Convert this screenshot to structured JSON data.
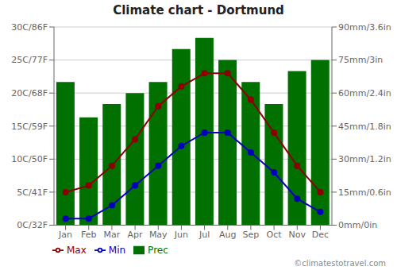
{
  "chart_data": {
    "type": "bar",
    "title": "Climate chart - Dortmund",
    "categories": [
      "Jan",
      "Feb",
      "Mar",
      "Apr",
      "May",
      "Jun",
      "Jul",
      "Aug",
      "Sep",
      "Oct",
      "Nov",
      "Dec"
    ],
    "series": [
      {
        "name": "Prec",
        "type": "bar",
        "axis": "y2",
        "color": "#007000",
        "values": [
          65,
          49,
          55,
          60,
          65,
          80,
          85,
          75,
          65,
          55,
          70,
          75
        ]
      },
      {
        "name": "Min",
        "type": "line",
        "color": "#0000bb",
        "marker": "circle",
        "values": [
          1,
          1,
          3,
          6,
          9,
          12,
          14,
          14,
          11,
          8,
          4,
          2
        ]
      },
      {
        "name": "Max",
        "type": "line",
        "color": "#8b0000",
        "marker": "circle",
        "values": [
          5,
          6,
          9,
          13,
          18,
          21,
          23,
          23,
          19,
          14,
          9,
          5
        ]
      }
    ],
    "ylim": [
      0,
      30
    ],
    "yticks": [
      {
        "value": 0,
        "label": "0C/32F"
      },
      {
        "value": 5,
        "label": "5C/41F"
      },
      {
        "value": 10,
        "label": "10C/50F"
      },
      {
        "value": 15,
        "label": "15C/59F"
      },
      {
        "value": 20,
        "label": "20C/68F"
      },
      {
        "value": 25,
        "label": "25C/77F"
      },
      {
        "value": 30,
        "label": "30C/86F"
      }
    ],
    "y2lim": [
      0,
      90
    ],
    "y2ticks": [
      {
        "value": 0,
        "label": "0mm/0in"
      },
      {
        "value": 15,
        "label": "15mm/0.6in"
      },
      {
        "value": 30,
        "label": "30mm/1.2in"
      },
      {
        "value": 45,
        "label": "45mm/1.8in"
      },
      {
        "value": 60,
        "label": "60mm/2.4in"
      },
      {
        "value": 75,
        "label": "75mm/3in"
      },
      {
        "value": 90,
        "label": "90mm/3.6in"
      }
    ],
    "grid": true,
    "legend": "lower left",
    "annotations": [
      "©climatestotravel.com"
    ]
  }
}
